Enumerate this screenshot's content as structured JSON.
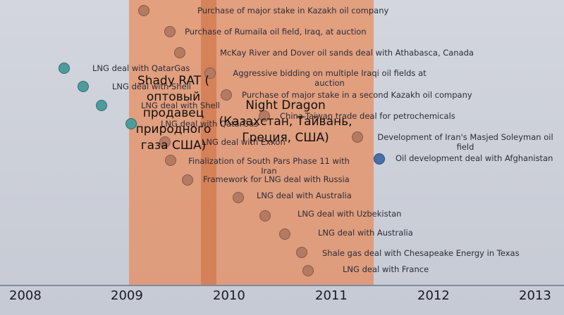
{
  "axis": {
    "years": [
      "2008",
      "2009",
      "2010",
      "2011",
      "2012",
      "2013"
    ]
  },
  "overlays": {
    "shady_rat": "Shady RAT ( оптовый продавец природного газа США)",
    "night_dragon": "Night Dragon (Казахстан, Тайвань, Греция, США)"
  },
  "events": [
    {
      "label": "Purchase of major stake in Kazakh oil company",
      "color": "brown"
    },
    {
      "label": "Purchase of Rumaila oil field, Iraq, at auction",
      "color": "brown"
    },
    {
      "label": "McKay River and Dover oil sands deal with Athabasca, Canada",
      "color": "brown"
    },
    {
      "label": "LNG deal with QatarGas",
      "color": "teal"
    },
    {
      "label": "Aggressive bidding on multiple Iraqi oil fields at auction",
      "color": "brown"
    },
    {
      "label": "LNG deal with Shell",
      "color": "teal"
    },
    {
      "label": "Purchase of major stake in a second Kazakh oil company",
      "color": "brown"
    },
    {
      "label": "LNG deal with Shell",
      "color": "teal"
    },
    {
      "label": "China-Taiwan trade deal for petrochemicals",
      "color": "brown"
    },
    {
      "label": "LNG deal with QatarGas",
      "color": "teal"
    },
    {
      "label": "Development of Iran's Masjed Soleyman oil field",
      "color": "brown"
    },
    {
      "label": "LNG deal with Exxon",
      "color": "brown"
    },
    {
      "label": "Oil development deal with Afghanistan",
      "color": "blue"
    },
    {
      "label": "Finalization of South Pars Phase 11 with Iran",
      "color": "brown"
    },
    {
      "label": "Framework for LNG deal with Russia",
      "color": "brown"
    },
    {
      "label": "LNG deal with Australia",
      "color": "brown"
    },
    {
      "label": "LNG deal with Uzbekistan",
      "color": "brown"
    },
    {
      "label": "LNG deal with Australia",
      "color": "brown"
    },
    {
      "label": "Shale gas deal with Chesapeake Energy in Texas",
      "color": "brown"
    },
    {
      "label": "LNG deal with France",
      "color": "brown"
    }
  ]
}
